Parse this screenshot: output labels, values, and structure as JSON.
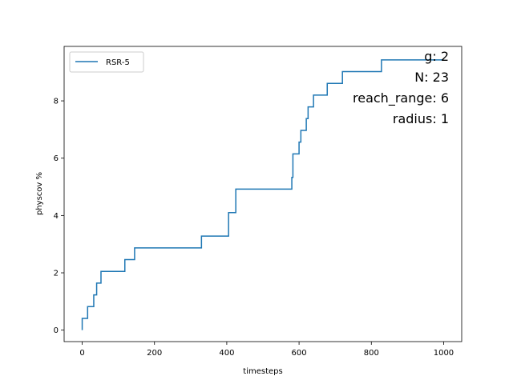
{
  "chart_data": {
    "type": "line",
    "xlabel": "timesteps",
    "ylabel": "physcov %",
    "xlim": [
      -50,
      1050
    ],
    "ylim": [
      -0.4,
      9.9
    ],
    "xticks": [
      0,
      200,
      400,
      600,
      800,
      1000
    ],
    "yticks": [
      0,
      2,
      4,
      6,
      8
    ],
    "legend_position": "upper-left",
    "annotations": [
      "g: 2",
      "N: 23",
      "reach_range: 6",
      "radius: 1"
    ],
    "series": [
      {
        "name": "RSR-5",
        "color": "#1f77b4",
        "x": [
          0,
          0,
          15,
          15,
          32,
          32,
          40,
          40,
          45,
          45,
          52,
          52,
          118,
          118,
          145,
          145,
          330,
          330,
          405,
          405,
          413,
          413,
          425,
          425,
          580,
          580,
          583,
          583,
          600,
          600,
          605,
          605,
          620,
          620,
          625,
          625,
          640,
          640,
          678,
          678,
          720,
          720,
          828,
          828,
          1000
        ],
        "y": [
          0,
          0.41,
          0.41,
          0.82,
          0.82,
          1.23,
          1.23,
          1.64,
          1.64,
          1.64,
          1.64,
          2.05,
          2.05,
          2.46,
          2.46,
          2.87,
          2.87,
          3.28,
          3.28,
          4.1,
          4.1,
          4.1,
          4.1,
          4.92,
          4.92,
          5.33,
          5.33,
          6.15,
          6.15,
          6.56,
          6.56,
          6.97,
          6.97,
          7.38,
          7.38,
          7.79,
          7.79,
          8.2,
          8.2,
          8.61,
          8.61,
          9.02,
          9.02,
          9.43,
          9.43
        ]
      }
    ]
  }
}
